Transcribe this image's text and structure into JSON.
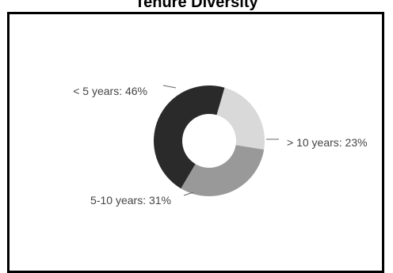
{
  "chart_data": {
    "type": "pie",
    "title": "Tenure Diversity",
    "donut": true,
    "slices": [
      {
        "label": "< 5 years",
        "value": 46,
        "label_text": "< 5 years: 46%",
        "color": "#2a2a2a"
      },
      {
        "label": "> 10 years",
        "value": 23,
        "label_text": "> 10 years: 23%",
        "color": "#d9d9d9"
      },
      {
        "label": "5-10 years",
        "value": 31,
        "label_text": "5-10 years: 31%",
        "color": "#999999"
      }
    ]
  }
}
